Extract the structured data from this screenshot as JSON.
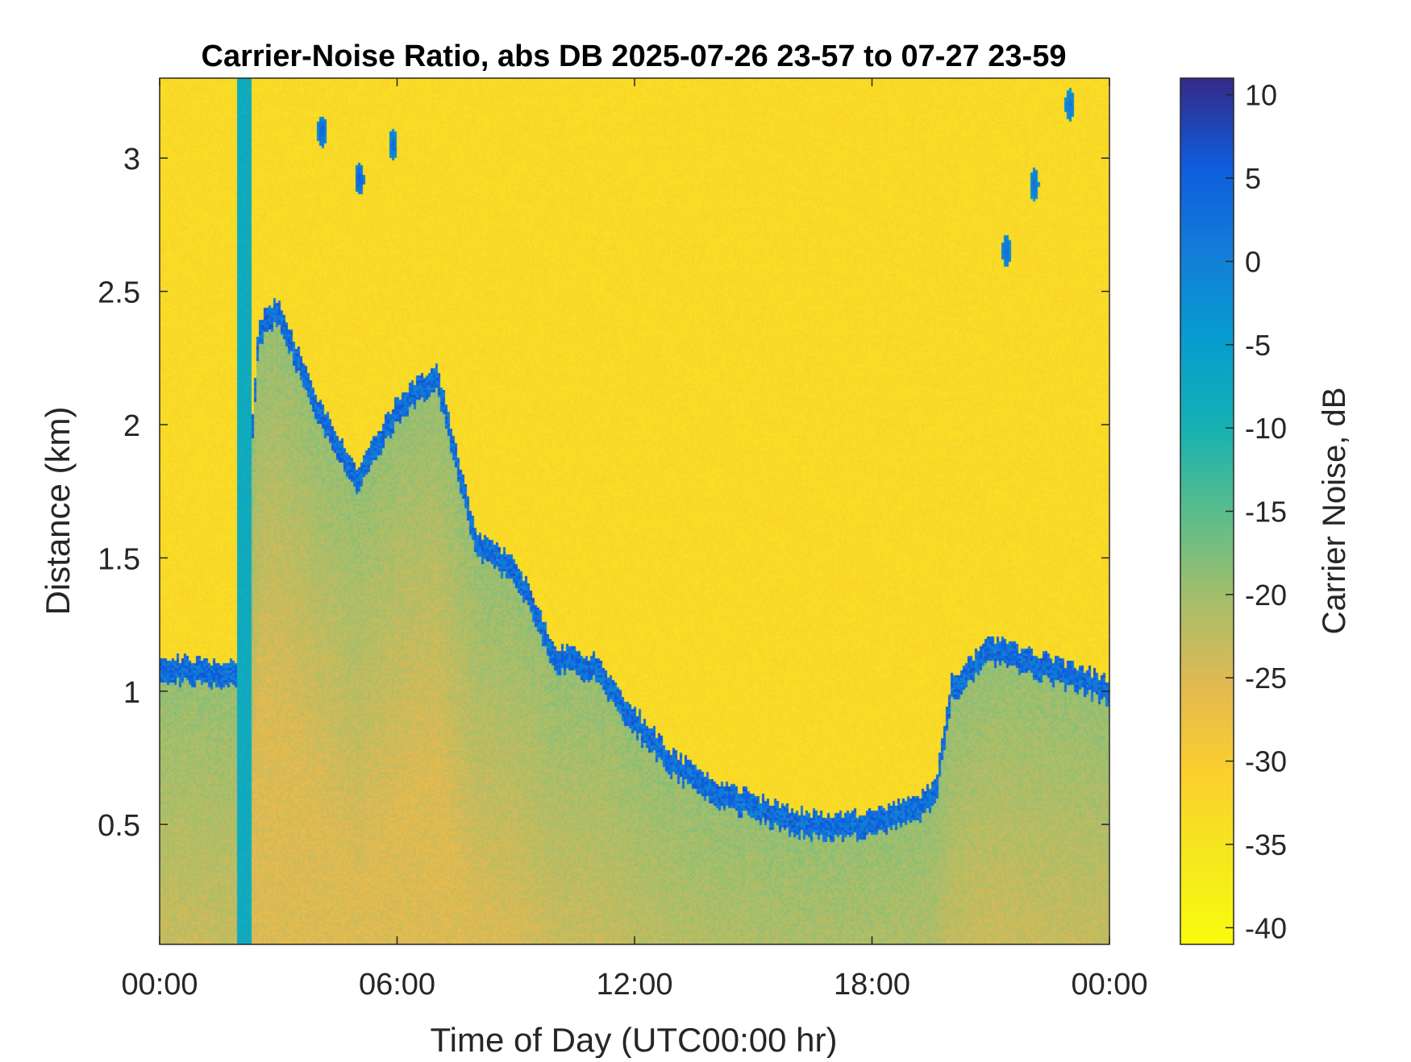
{
  "chart_data": {
    "type": "heatmap",
    "title": "Carrier-Noise Ratio, abs DB 2025-07-26 23-57 to 07-27 23-59",
    "xlabel": "Time of Day (UTC00:00 hr)",
    "ylabel": "Distance (km)",
    "colorbar_label": "Carrier Noise, dB",
    "xlim_hours": [
      0,
      24
    ],
    "x_ticks": [
      {
        "value": 0,
        "label": "00:00"
      },
      {
        "value": 6,
        "label": "06:00"
      },
      {
        "value": 12,
        "label": "12:00"
      },
      {
        "value": 18,
        "label": "18:00"
      },
      {
        "value": 24,
        "label": "00:00"
      }
    ],
    "ylim": [
      0.05,
      3.3
    ],
    "y_ticks": [
      {
        "value": 0.5,
        "label": "0.5"
      },
      {
        "value": 1,
        "label": "1"
      },
      {
        "value": 1.5,
        "label": "1.5"
      },
      {
        "value": 2,
        "label": "2"
      },
      {
        "value": 2.5,
        "label": "2.5"
      },
      {
        "value": 3,
        "label": "3"
      }
    ],
    "clim": [
      -41,
      11
    ],
    "colorbar_ticks": [
      {
        "value": 10,
        "label": "10"
      },
      {
        "value": 5,
        "label": "5"
      },
      {
        "value": 0,
        "label": "0"
      },
      {
        "value": -5,
        "label": "-5"
      },
      {
        "value": -10,
        "label": "-10"
      },
      {
        "value": -15,
        "label": "-15"
      },
      {
        "value": -20,
        "label": "-20"
      },
      {
        "value": -25,
        "label": "-25"
      },
      {
        "value": -30,
        "label": "-30"
      },
      {
        "value": -35,
        "label": "-35"
      },
      {
        "value": -40,
        "label": "-40"
      }
    ],
    "colormap": "parula",
    "background_noise_db": -33,
    "boundary_layer": {
      "description": "top height of aerosol-laden layer (km) vs time (hours); strong-signal edge along the top",
      "time_hours": [
        0,
        1,
        2,
        2.5,
        3,
        4,
        5,
        6,
        7,
        8,
        9,
        10,
        11,
        12,
        13,
        14,
        15,
        16,
        17,
        18,
        19,
        19.6,
        20,
        21,
        22,
        23,
        24
      ],
      "top_km": [
        1.07,
        1.07,
        1.06,
        2.35,
        2.42,
        2.05,
        1.78,
        2.05,
        2.18,
        1.55,
        1.45,
        1.12,
        1.08,
        0.88,
        0.72,
        0.62,
        0.56,
        0.5,
        0.49,
        0.5,
        0.55,
        0.6,
        1.0,
        1.15,
        1.1,
        1.05,
        1.0
      ],
      "layer_db": -19,
      "edge_db": 3
    },
    "blocked_column": {
      "time_start_hours": 1.95,
      "time_end_hours": 2.35,
      "db": -8
    },
    "clouds": [
      {
        "time_hours": 4.1,
        "distance_km": 3.1,
        "db": 5
      },
      {
        "time_hours": 5.05,
        "distance_km": 2.92,
        "db": 6
      },
      {
        "time_hours": 5.9,
        "distance_km": 3.05,
        "db": 4
      },
      {
        "time_hours": 21.4,
        "distance_km": 2.65,
        "db": 4
      },
      {
        "time_hours": 22.1,
        "distance_km": 2.9,
        "db": 3
      },
      {
        "time_hours": 23.0,
        "distance_km": 3.2,
        "db": 3
      }
    ]
  }
}
